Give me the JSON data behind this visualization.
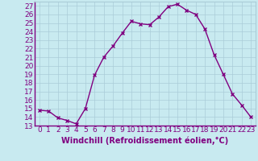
{
  "x": [
    0,
    1,
    2,
    3,
    4,
    5,
    6,
    7,
    8,
    9,
    10,
    11,
    12,
    13,
    14,
    15,
    16,
    17,
    18,
    19,
    20,
    21,
    22,
    23
  ],
  "y": [
    14.8,
    14.7,
    13.9,
    13.6,
    13.2,
    15.0,
    18.9,
    21.0,
    22.3,
    23.8,
    25.2,
    24.9,
    24.8,
    25.7,
    26.9,
    27.2,
    26.5,
    26.0,
    24.3,
    21.3,
    19.0,
    16.7,
    15.4,
    14.0
  ],
  "line_color": "#800080",
  "marker": "x",
  "marker_size": 3,
  "linewidth": 1.0,
  "xlabel": "Windchill (Refroidissement éolien,°C)",
  "ylabel_ticks": [
    13,
    14,
    15,
    16,
    17,
    18,
    19,
    20,
    21,
    22,
    23,
    24,
    25,
    26,
    27
  ],
  "ylim": [
    13,
    27.5
  ],
  "xlim": [
    -0.5,
    23.5
  ],
  "bg_color": "#c8eaf0",
  "grid_color": "#aaccd8",
  "tick_color": "#800080",
  "label_color": "#800080",
  "font_size": 6.5,
  "xlabel_font_size": 7.0
}
